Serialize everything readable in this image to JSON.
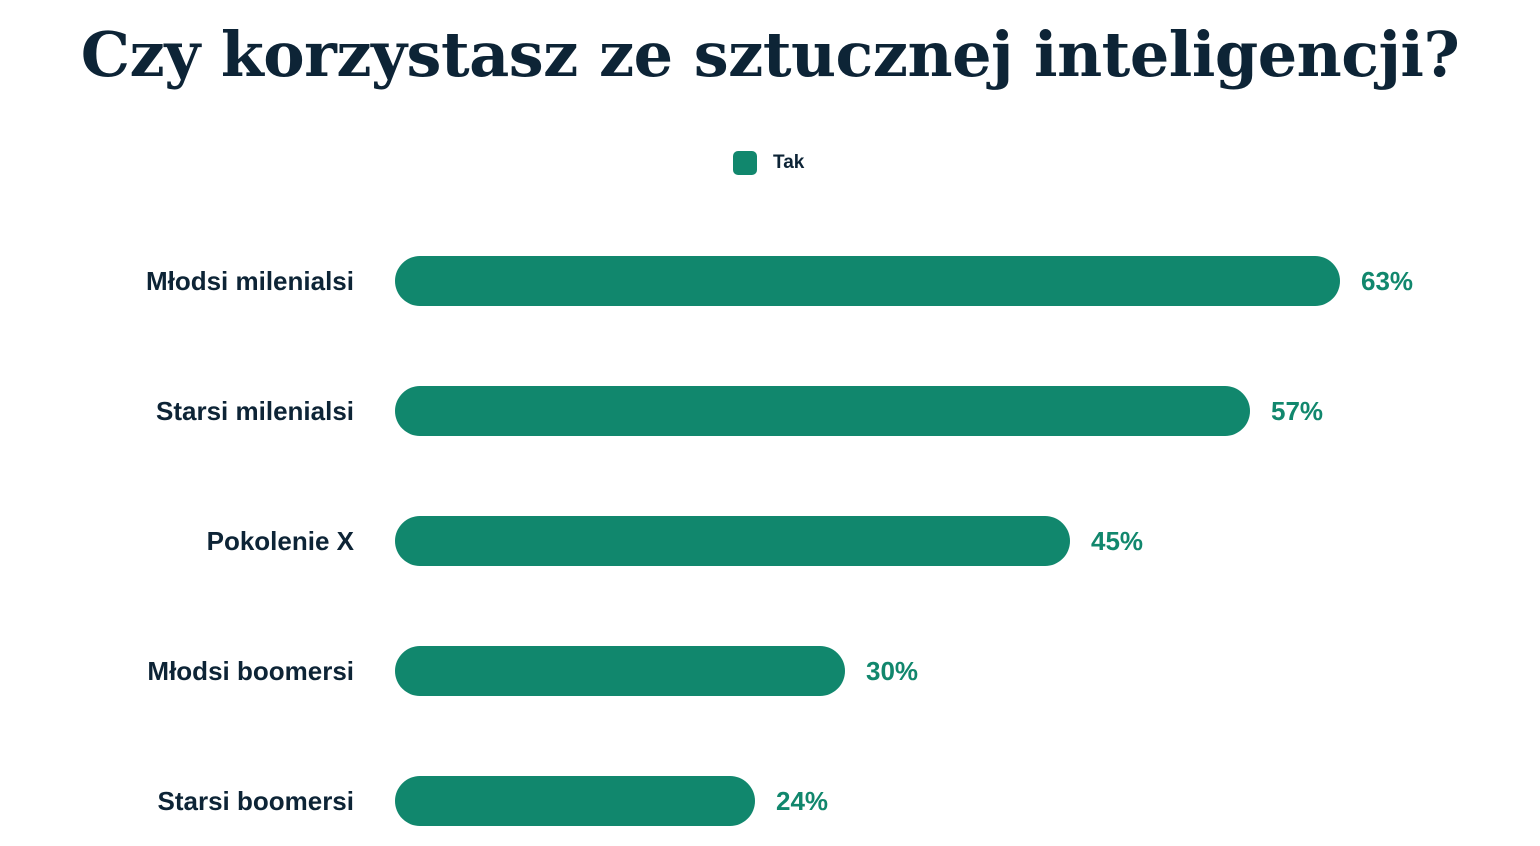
{
  "chart_data": {
    "type": "bar",
    "orientation": "horizontal",
    "title": "Czy korzystasz ze sztucznej inteligencji?",
    "categories": [
      "Młodsi milenialsi",
      "Starsi milenialsi",
      "Pokolenie X",
      "Młodsi boomersi",
      "Starsi boomersi"
    ],
    "series": [
      {
        "name": "Tak",
        "values": [
          63,
          57,
          45,
          30,
          24
        ],
        "color": "#11876d"
      }
    ],
    "value_labels": [
      "63%",
      "57%",
      "45%",
      "30%",
      "24%"
    ],
    "legend": {
      "position": "top-center",
      "entries": [
        "Tak"
      ]
    },
    "grid": false,
    "unit": "%"
  }
}
